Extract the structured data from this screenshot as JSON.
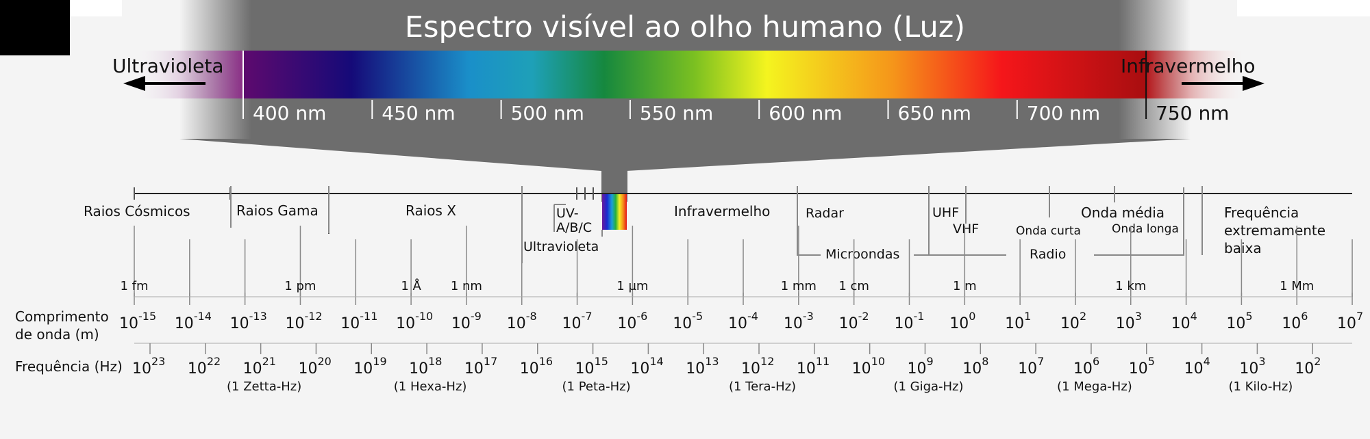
{
  "title": "Espectro visível ao olho humano (Luz)",
  "visible": {
    "left_label": "Ultravioleta",
    "right_label": "Infravermelho",
    "nm_labels": [
      "400 nm",
      "450 nm",
      "500 nm",
      "550 nm",
      "600 nm",
      "650 nm",
      "700 nm",
      "750 nm"
    ]
  },
  "bands": {
    "cosmic": "Raios Cósmicos",
    "gamma": "Raios Gama",
    "xray": "Raios X",
    "uv_abc_1": "UV-",
    "uv_abc_2": "A/B/C",
    "ultraviolet": "Ultravioleta",
    "infrared": "Infravermelho",
    "radar": "Radar",
    "microwaves": "Microondas",
    "uhf": "UHF",
    "vhf": "VHF",
    "shortwave": "Onda curta",
    "mediumwave": "Onda média",
    "longwave": "Onda longa",
    "radio": "Radio",
    "elf_1": "Frequência",
    "elf_2": "extremamente",
    "elf_3": "baixa"
  },
  "units": {
    "fm": "1 fm",
    "pm": "1 pm",
    "angstrom": "1 Å",
    "nm": "1 nm",
    "um": "1 µm",
    "mm": "1 mm",
    "cm": "1 cm",
    "m": "1 m",
    "km": "1 km",
    "Mm": "1 Mm"
  },
  "wavelength": {
    "label_1": "Comprimento",
    "label_2": "de onda (m)",
    "base": "10",
    "exponents": [
      "-15",
      "-14",
      "-13",
      "-12",
      "-11",
      "-10",
      "-9",
      "-8",
      "-7",
      "-6",
      "-5",
      "-4",
      "-3",
      "-2",
      "-1",
      "0",
      "1",
      "2",
      "3",
      "4",
      "5",
      "6",
      "7"
    ]
  },
  "frequency": {
    "label": "Frequência (Hz)",
    "base": "10",
    "exponents": [
      "23",
      "22",
      "21",
      "20",
      "19",
      "18",
      "17",
      "16",
      "15",
      "14",
      "13",
      "12",
      "11",
      "10",
      "9",
      "8",
      "7",
      "6",
      "5",
      "4",
      "3",
      "2"
    ],
    "named": [
      "(1 Zetta-Hz)",
      "(1 Hexa-Hz)",
      "(1 Peta-Hz)",
      "(1 Tera-Hz)",
      "(1 Giga-Hz)",
      "(1 Mega-Hz)",
      "(1 Kilo-Hz)"
    ]
  },
  "colors": {
    "background": "#f4f4f4",
    "zoom_band": "#6d6d6d",
    "axis": "#222222",
    "guide": "#888888",
    "text": "#111111",
    "white_text": "#ffffff"
  }
}
